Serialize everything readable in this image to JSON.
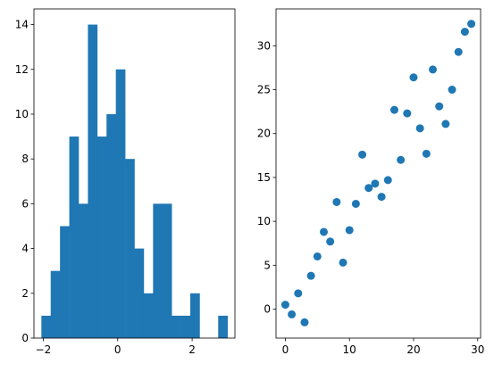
{
  "colors": {
    "bar": "#1f77b4",
    "point": "#1f77b4",
    "axis": "#000000",
    "background": "#ffffff"
  },
  "chart_data": [
    {
      "type": "bar",
      "title": "",
      "xlabel": "",
      "ylabel": "",
      "xlim": [
        -2.25,
        3.15
      ],
      "ylim": [
        0,
        14.7
      ],
      "bin_edges": [
        -2.05,
        -1.8,
        -1.55,
        -1.3,
        -1.05,
        -0.8,
        -0.55,
        -0.3,
        -0.05,
        0.2,
        0.45,
        0.7,
        0.95,
        1.2,
        1.45,
        1.7,
        1.95,
        2.2,
        2.45,
        2.7,
        2.95
      ],
      "values": [
        1,
        3,
        5,
        9,
        6,
        14,
        9,
        10,
        12,
        8,
        4,
        2,
        6,
        6,
        1,
        1,
        2,
        0,
        0,
        1
      ],
      "xticks": [
        -2,
        0,
        2
      ],
      "xtick_labels": [
        "−2",
        "0",
        "2"
      ],
      "yticks": [
        0,
        2,
        4,
        6,
        8,
        10,
        12,
        14
      ],
      "ytick_labels": [
        "0",
        "2",
        "4",
        "6",
        "8",
        "10",
        "12",
        "14"
      ]
    },
    {
      "type": "scatter",
      "title": "",
      "xlabel": "",
      "ylabel": "",
      "xlim": [
        -1.45,
        30.45
      ],
      "ylim": [
        -3.3,
        34.2
      ],
      "x": [
        0,
        1,
        2,
        3,
        4,
        5,
        6,
        7,
        8,
        9,
        10,
        11,
        12,
        13,
        14,
        15,
        16,
        17,
        18,
        19,
        20,
        21,
        22,
        23,
        24,
        25,
        26,
        27,
        28,
        29
      ],
      "y": [
        0.5,
        -0.6,
        1.8,
        -1.5,
        3.8,
        6.0,
        8.8,
        7.7,
        12.2,
        5.3,
        9.0,
        12.0,
        17.6,
        13.8,
        14.3,
        12.8,
        14.7,
        22.7,
        17.0,
        22.3,
        26.4,
        20.6,
        17.7,
        27.3,
        23.1,
        21.1,
        25.0,
        29.3,
        31.6,
        32.5
      ],
      "xticks": [
        0,
        10,
        20,
        30
      ],
      "xtick_labels": [
        "0",
        "10",
        "20",
        "30"
      ],
      "yticks": [
        0,
        5,
        10,
        15,
        20,
        25,
        30
      ],
      "ytick_labels": [
        "0",
        "5",
        "10",
        "15",
        "20",
        "25",
        "30"
      ]
    }
  ]
}
